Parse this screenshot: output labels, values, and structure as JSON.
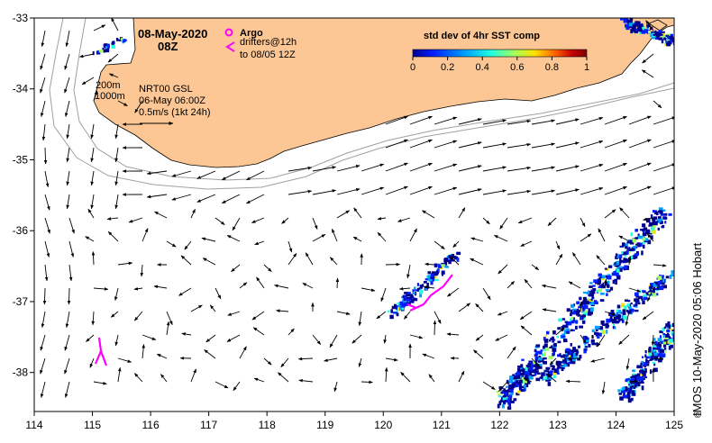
{
  "map": {
    "date": "08-May-2020",
    "time": "08Z",
    "legend": {
      "argo_label": "Argo",
      "drifters_line1": "drifters@12h",
      "drifters_line2": "to 08/05 12Z"
    },
    "isobaths": [
      "200m",
      "1000m"
    ],
    "product": "NRT00 GSL",
    "product_date": "06-May 06:00Z",
    "scale_label": "0.5m/s (1kt 24h)",
    "colorbar": {
      "title": "std dev of 4hr SST comp",
      "ticks": [
        "0",
        "0.2",
        "0.4",
        "0.6",
        "0.8",
        "1"
      ],
      "colors": [
        "#00008f",
        "#0020ff",
        "#00a0ff",
        "#20ffe0",
        "#a0ff60",
        "#ffe000",
        "#ff6000",
        "#c00000",
        "#800000"
      ]
    },
    "x_ticks": [
      "114",
      "115",
      "116",
      "117",
      "118",
      "119",
      "120",
      "121",
      "122",
      "123",
      "124",
      "125"
    ],
    "y_ticks": [
      "-33",
      "-34",
      "-35",
      "-36",
      "-37",
      "-38"
    ],
    "x_range": [
      114,
      125
    ],
    "y_range": [
      -38.55,
      -33.0
    ],
    "credit": "IMOS 10-May-2020 05:06 Hobart",
    "copyright": "©",
    "colors": {
      "land": "#fcc794",
      "drifters": "#ff00ff",
      "isobath": "#a0a0a0"
    }
  }
}
